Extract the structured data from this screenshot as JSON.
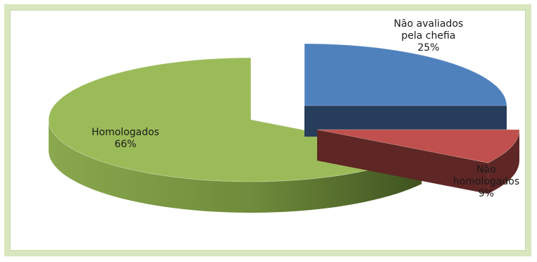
{
  "chart_data": {
    "type": "pie",
    "style": "3d-exploded",
    "slices": [
      {
        "label_lines": [
          "Não avaliados",
          "pela chefia"
        ],
        "percent_label": "25%",
        "value": 25,
        "color": "#4f81bd",
        "side_color": "#263d5c"
      },
      {
        "label_lines": [
          "Não",
          "homologados"
        ],
        "percent_label": "9%",
        "value": 9,
        "color": "#c0504d",
        "side_color": "#5e2624"
      },
      {
        "label_lines": [
          "Homologados"
        ],
        "percent_label": "66%",
        "value": 66,
        "color": "#9bbb59",
        "side_color": "#5b7232"
      }
    ],
    "legend": "none"
  }
}
